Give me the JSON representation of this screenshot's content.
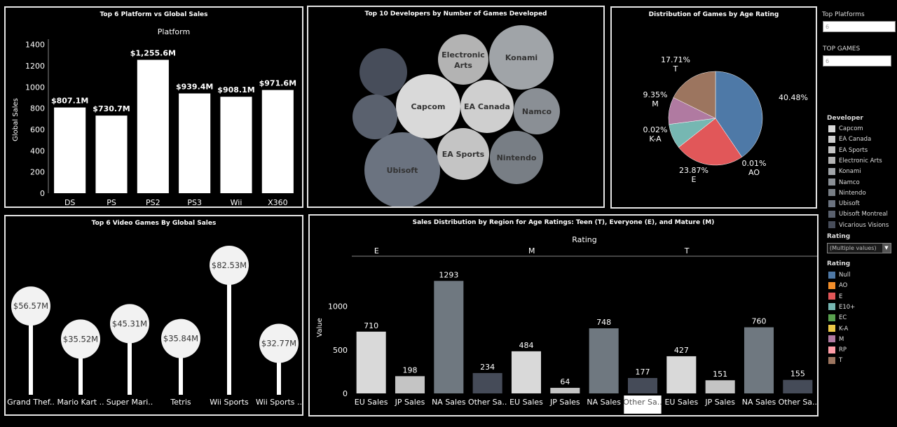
{
  "panels": {
    "platform": {
      "title": "Top 6 Platform vs Global Sales"
    },
    "developers": {
      "title": "Top 10 Developers by Number of Games Developed"
    },
    "age": {
      "title": "Distribution of Games by Age Rating"
    },
    "games": {
      "title": "Top 6 Video Games By Global Sales"
    },
    "region": {
      "title": "Sales Distribution by Region for Age Ratings: Teen (T), Everyone (E), and Mature (M)"
    }
  },
  "sidebar": {
    "top_platforms_label": "Top Platforms",
    "top_platforms_value": "6",
    "top_games_label": "TOP GAMES",
    "top_games_value": "6",
    "developer_legend_title": "Developer",
    "developer_legend": [
      {
        "label": "Capcom",
        "color": "#d9d9d9"
      },
      {
        "label": "EA Canada",
        "color": "#cfcfcf"
      },
      {
        "label": "EA Sports",
        "color": "#c4c4c4"
      },
      {
        "label": "Electronic Arts",
        "color": "#b3b3b3"
      },
      {
        "label": "Konami",
        "color": "#a0a4a8"
      },
      {
        "label": "Namco",
        "color": "#8a8f95"
      },
      {
        "label": "Nintendo",
        "color": "#787e85"
      },
      {
        "label": "Ubisoft",
        "color": "#6b7380"
      },
      {
        "label": "Ubisoft Montreal",
        "color": "#5a616e"
      },
      {
        "label": "Vicarious Visions",
        "color": "#474d5a"
      }
    ],
    "rating_filter_label": "Rating",
    "rating_filter_value": "(Multiple values)",
    "rating_legend_title": "Rating",
    "rating_legend": [
      {
        "label": "Null",
        "color": "#4e79a7"
      },
      {
        "label": "AO",
        "color": "#f28e2b"
      },
      {
        "label": "E",
        "color": "#e15759"
      },
      {
        "label": "E10+",
        "color": "#76b7b2"
      },
      {
        "label": "EC",
        "color": "#59a14f"
      },
      {
        "label": "K-A",
        "color": "#edc948"
      },
      {
        "label": "M",
        "color": "#b07aa1"
      },
      {
        "label": "RP",
        "color": "#ff9da7"
      },
      {
        "label": "T",
        "color": "#9c755f"
      }
    ]
  },
  "chart_data": [
    {
      "id": "platform",
      "type": "bar",
      "title": "Top 6 Platform vs Global Sales",
      "xlabel": "Platform",
      "ylabel": "Global Sales",
      "categories": [
        "DS",
        "PS",
        "PS2",
        "PS3",
        "Wii",
        "X360"
      ],
      "values": [
        807.1,
        730.7,
        1255.6,
        939.4,
        908.1,
        971.6
      ],
      "labels": [
        "$807.1M",
        "$730.7M",
        "$1,255.6M",
        "$939.4M",
        "$908.1M",
        "$971.6M"
      ],
      "yticks": [
        0,
        200,
        400,
        600,
        800,
        1000,
        1200,
        1400
      ],
      "ylim": [
        0,
        1450
      ],
      "color": "#ffffff"
    },
    {
      "id": "developers",
      "type": "bubble",
      "title": "Top 10 Developers by Number of Games Developed",
      "items": [
        {
          "name": "Ubisoft",
          "label": "Ubisoft",
          "color": "#6b7380"
        },
        {
          "name": "Capcom",
          "label": "Capcom",
          "color": "#d9d9d9"
        },
        {
          "name": "Konami",
          "label": "Konami",
          "color": "#a0a4a8"
        },
        {
          "name": "Electronic Arts",
          "label": "Electronic Arts",
          "color": "#b3b3b3"
        },
        {
          "name": "EA Canada",
          "label": "EA Canada",
          "color": "#cfcfcf"
        },
        {
          "name": "Namco",
          "label": "Namco",
          "color": "#8a8f95"
        },
        {
          "name": "EA Sports",
          "label": "EA Sports",
          "color": "#c4c4c4"
        },
        {
          "name": "Nintendo",
          "label": "Nintendo",
          "color": "#787e85"
        },
        {
          "name": "Vicarious Visions",
          "label": "",
          "color": "#474d5a"
        },
        {
          "name": "Ubisoft Montreal",
          "label": "",
          "color": "#5a616e"
        }
      ]
    },
    {
      "id": "age",
      "type": "pie",
      "title": "Distribution of Games by Age Rating",
      "slices": [
        {
          "label": "Null",
          "pct": 40.48,
          "text": "40.48%",
          "color": "#4e79a7"
        },
        {
          "label": "AO",
          "pct": 0.01,
          "text": "0.01%",
          "sub": "AO",
          "color": "#f28e2b"
        },
        {
          "label": "E",
          "pct": 23.87,
          "text": "23.87%",
          "sub": "E",
          "color": "#e15759"
        },
        {
          "label": "K-A",
          "pct": 0.02,
          "text": "0.02%",
          "sub": "K-A",
          "color": "#edc948"
        },
        {
          "label": "E10+",
          "pct": 8.55,
          "text": "",
          "color": "#76b7b2"
        },
        {
          "label": "M",
          "pct": 9.35,
          "text": "9.35%",
          "sub": "M",
          "color": "#b07aa1"
        },
        {
          "label": "T",
          "pct": 17.71,
          "text": "17.71%",
          "sub": "T",
          "color": "#9c755f"
        }
      ]
    },
    {
      "id": "games",
      "type": "lollipop",
      "title": "Top 6 Video Games By Global Sales",
      "categories": [
        "Grand Thef..",
        "Mario Kart ..",
        "Super Mari..",
        "Tetris",
        "Wii Sports",
        "Wii Sports .."
      ],
      "values": [
        56.57,
        35.52,
        45.31,
        35.84,
        82.53,
        32.77
      ],
      "labels": [
        "$56.57M",
        "$35.52M",
        "$45.31M",
        "$35.84M",
        "$82.53M",
        "$32.77M"
      ]
    },
    {
      "id": "region",
      "type": "bar",
      "title": "Sales Distribution by Region for Age Ratings: Teen (T), Everyone (E), and Mature (M)",
      "group_title": "Rating",
      "ylabel": "Value",
      "yticks": [
        0,
        500,
        1000
      ],
      "ylim": [
        0,
        1400
      ],
      "groups": [
        {
          "name": "E",
          "categories": [
            "EU Sales",
            "JP Sales",
            "NA Sales",
            "Other Sa.."
          ],
          "values": [
            710,
            198,
            1293,
            234
          ]
        },
        {
          "name": "M",
          "categories": [
            "EU Sales",
            "JP Sales",
            "NA Sales",
            "Other Sa.."
          ],
          "values": [
            484,
            64,
            748,
            177
          ]
        },
        {
          "name": "T",
          "categories": [
            "EU Sales",
            "JP Sales",
            "NA Sales",
            "Other Sa.."
          ],
          "values": [
            427,
            151,
            760,
            155
          ]
        }
      ],
      "region_colors": {
        "EU Sales": "#d9d9d9",
        "JP Sales": "#c4c4c4",
        "NA Sales": "#6f7880",
        "Other Sa..": "#454b58"
      },
      "highlighted_label": "M Other Sa.."
    }
  ]
}
